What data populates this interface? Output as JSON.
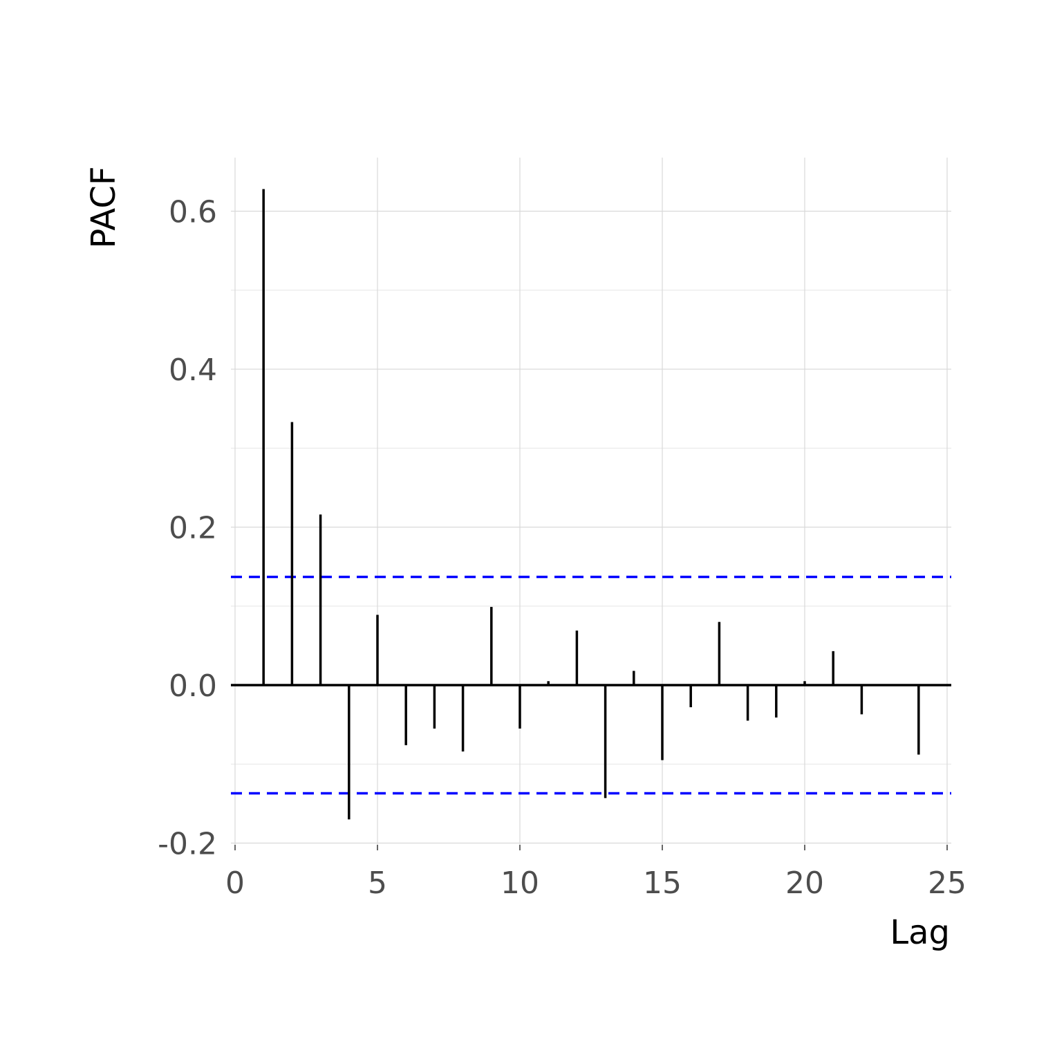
{
  "chart_data": {
    "type": "bar",
    "title": "",
    "xlabel": "Lag",
    "ylabel": "PACF",
    "xlim": [
      0,
      25
    ],
    "ylim": [
      -0.2,
      0.6
    ],
    "x_ticks": [
      0,
      5,
      10,
      15,
      20,
      25
    ],
    "x_tick_labels": [
      "0",
      "5",
      "10",
      "15",
      "20",
      "25"
    ],
    "y_ticks": [
      -0.2,
      0.0,
      0.2,
      0.4,
      0.6
    ],
    "y_tick_labels": [
      "-0.2",
      "0.0",
      "0.2",
      "0.4",
      "0.6"
    ],
    "grid": true,
    "lags": [
      1,
      2,
      3,
      4,
      5,
      6,
      7,
      8,
      9,
      10,
      11,
      12,
      13,
      14,
      15,
      16,
      17,
      18,
      19,
      20,
      21,
      22,
      23,
      24
    ],
    "values": [
      0.628,
      0.333,
      0.216,
      -0.17,
      0.089,
      -0.076,
      -0.055,
      -0.084,
      0.099,
      -0.055,
      0.005,
      0.069,
      -0.143,
      0.018,
      -0.095,
      -0.028,
      0.08,
      -0.045,
      -0.041,
      0.005,
      0.043,
      -0.037,
      0.0,
      -0.088
    ],
    "confidence_bound": 0.137,
    "colors": {
      "bars": "#000000",
      "confidence": "#0000ff",
      "zero_line": "#000000"
    }
  }
}
